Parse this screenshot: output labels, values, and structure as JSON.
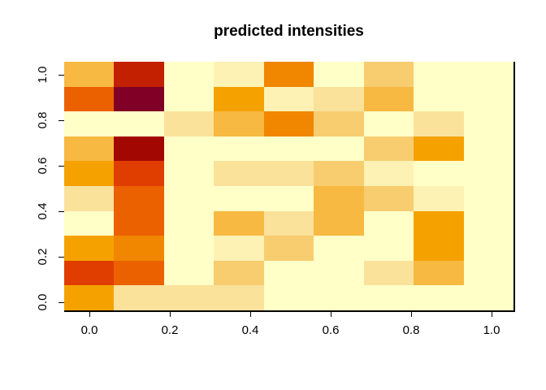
{
  "title": "predicted intensities",
  "chart_data": {
    "type": "heatmap",
    "title": "predicted intensities",
    "xlabel": "",
    "ylabel": "",
    "legend": "none",
    "grid_lines": "off",
    "background": "#ffffff",
    "n_cols": 9,
    "n_rows": 10,
    "x_tick_labels": [
      "0.0",
      "0.2",
      "0.4",
      "0.6",
      "0.8",
      "1.0"
    ],
    "y_tick_labels": [
      "0.0",
      "0.2",
      "0.4",
      "0.6",
      "0.8",
      "1.0"
    ],
    "x_tick_values": [
      0.0,
      0.2,
      0.4,
      0.6,
      0.8,
      1.0
    ],
    "y_tick_values": [
      0.0,
      0.2,
      0.4,
      0.6,
      0.8,
      1.0
    ],
    "x_range": [
      -0.0625,
      1.0625
    ],
    "y_range": [
      -0.0556,
      1.0556
    ],
    "x_cell_centers": [
      0.0,
      0.125,
      0.25,
      0.375,
      0.5,
      0.625,
      0.75,
      0.875,
      1.0
    ],
    "y_cell_centers": [
      0.0,
      0.111,
      0.222,
      0.333,
      0.444,
      0.556,
      0.667,
      0.778,
      0.889,
      1.0
    ],
    "palette_light_to_dark": [
      "pale",
      "cream",
      "ltan",
      "tan",
      "gold",
      "orange",
      "dorange",
      "rorange",
      "red",
      "dred",
      "dred2",
      "maroon"
    ],
    "palette": {
      "pale": "#FFFFC8",
      "cream": "#FDF2B4",
      "ltan": "#FAE29B",
      "tan": "#F7CD70",
      "gold": "#F7B941",
      "orange": "#F5A200",
      "dorange": "#F18600",
      "rorange": "#EB6100",
      "red": "#E03D00",
      "dred": "#C22000",
      "dred2": "#A30702",
      "maroon": "#800026"
    },
    "grid_rows_top_to_bottom": [
      [
        "gold",
        "dred",
        "pale",
        "cream",
        "dorange",
        "pale",
        "tan",
        "pale",
        "pale"
      ],
      [
        "rorange",
        "maroon",
        "pale",
        "orange",
        "cream",
        "ltan",
        "gold",
        "pale",
        "pale"
      ],
      [
        "pale",
        "pale",
        "ltan",
        "gold",
        "dorange",
        "tan",
        "pale",
        "ltan",
        "pale"
      ],
      [
        "gold",
        "dred2",
        "pale",
        "pale",
        "pale",
        "pale",
        "tan",
        "orange",
        "pale"
      ],
      [
        "orange",
        "red",
        "pale",
        "ltan",
        "ltan",
        "tan",
        "cream",
        "pale",
        "pale"
      ],
      [
        "ltan",
        "rorange",
        "pale",
        "pale",
        "pale",
        "gold",
        "tan",
        "cream",
        "pale"
      ],
      [
        "pale",
        "rorange",
        "pale",
        "gold",
        "ltan",
        "gold",
        "pale",
        "orange",
        "pale"
      ],
      [
        "orange",
        "dorange",
        "pale",
        "cream",
        "tan",
        "pale",
        "pale",
        "orange",
        "pale"
      ],
      [
        "red",
        "rorange",
        "pale",
        "tan",
        "pale",
        "pale",
        "ltan",
        "gold",
        "pale"
      ],
      [
        "orange",
        "ltan",
        "ltan",
        "ltan",
        "pale",
        "pale",
        "pale",
        "pale",
        "pale"
      ]
    ]
  }
}
